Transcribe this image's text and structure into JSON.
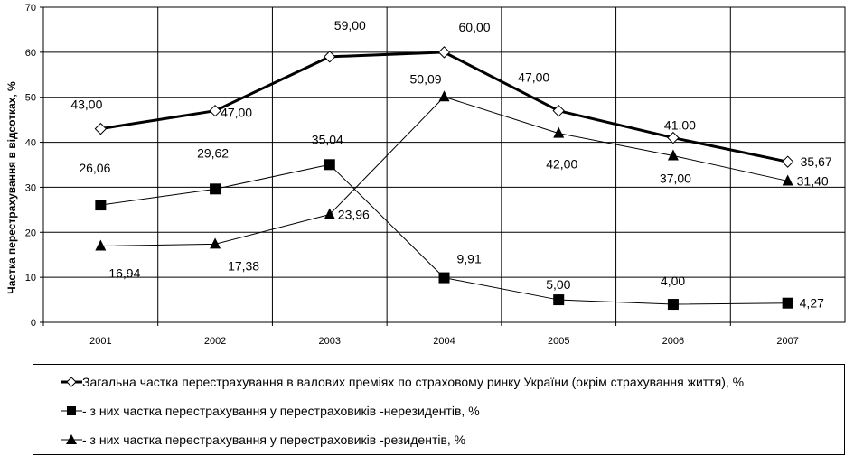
{
  "chart_data": {
    "type": "line",
    "categories": [
      "2001",
      "2002",
      "2003",
      "2004",
      "2005",
      "2006",
      "2007"
    ],
    "ylabel": "Частка перестрахування  в відсотках, %",
    "ylim": [
      0,
      70
    ],
    "yticks": [
      "0",
      "10",
      "20",
      "30",
      "40",
      "50",
      "60",
      "70"
    ],
    "grid": true,
    "legend_position": "bottom",
    "series": [
      {
        "name": "Загальна частка перестрахування в валових преміях по страховому ринку України (окрім страхування життя), %",
        "marker": "diamond",
        "values": [
          43.0,
          47.0,
          59.0,
          60.0,
          47.0,
          41.0,
          35.67
        ],
        "labels": [
          "43,00",
          "47,00",
          "59,00",
          "60,00",
          "47,00",
          "41,00",
          "35,67"
        ]
      },
      {
        "name": "- з них частка перестрахування у перестраховиків -нерезидентів, %",
        "marker": "square",
        "values": [
          26.06,
          29.62,
          35.04,
          9.91,
          5.0,
          4.0,
          4.27
        ],
        "labels": [
          "26,06",
          "29,62",
          "35,04",
          "9,91",
          "5,00",
          "4,00",
          "4,27"
        ]
      },
      {
        "name": "- з них частка перестрахування у перестраховиків -резидентів, %",
        "marker": "triangle",
        "values": [
          16.94,
          17.38,
          23.96,
          50.09,
          42.0,
          37.0,
          31.4
        ],
        "labels": [
          "16,94",
          "17,38",
          "23,96",
          "50,09",
          "42,00",
          "37,00",
          "31,40"
        ]
      }
    ]
  }
}
